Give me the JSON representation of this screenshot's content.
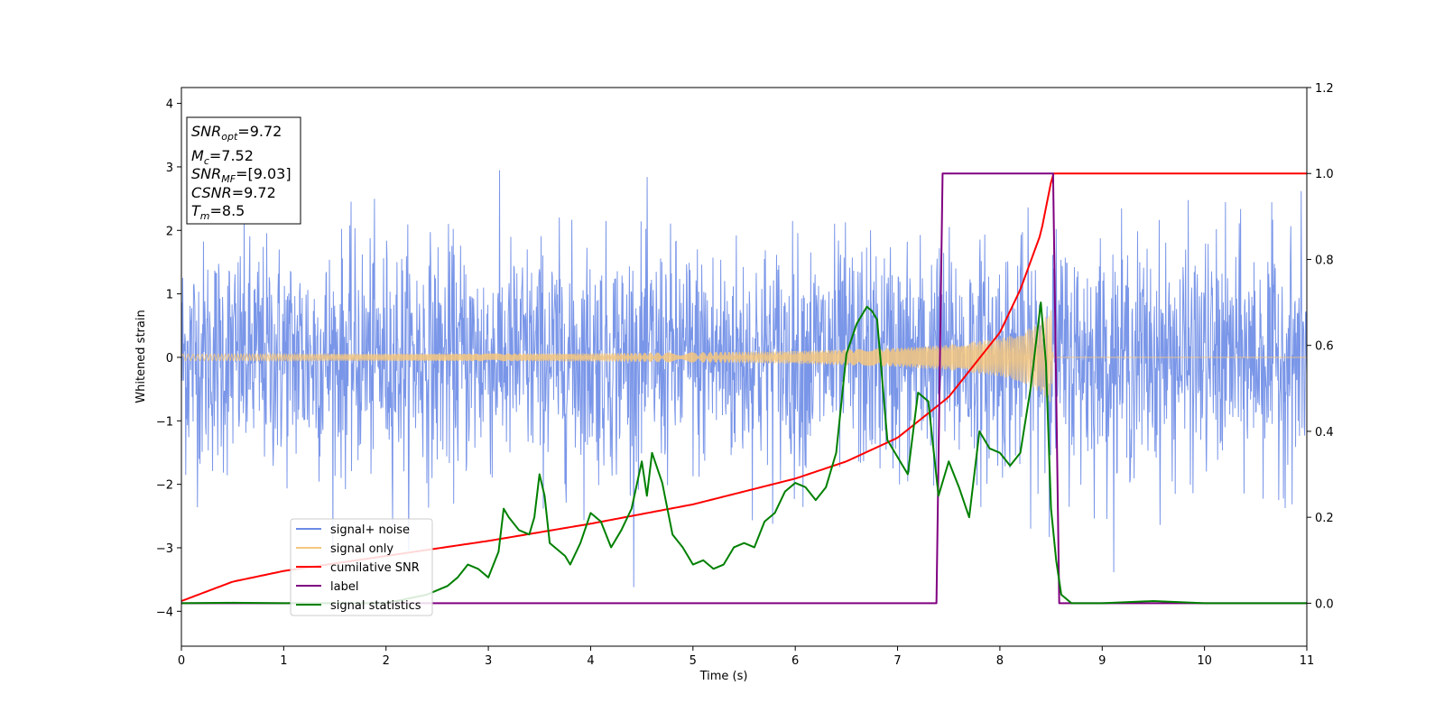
{
  "chart_data": {
    "type": "line",
    "xlabel": "Time (s)",
    "ylabel": "Whitened strain",
    "xlim": [
      0,
      11
    ],
    "ylim": [
      -4.55,
      4.25
    ],
    "y2lim": [
      -0.1,
      1.2
    ],
    "xticks": [
      0,
      1,
      2,
      3,
      4,
      5,
      6,
      7,
      8,
      9,
      10,
      11
    ],
    "yticks": [
      -4,
      -3,
      -2,
      -1,
      0,
      1,
      2,
      3,
      4
    ],
    "y2ticks": [
      "0.0",
      "0.2",
      "0.4",
      "0.6",
      "0.8",
      "1.0",
      "1.2"
    ],
    "legend_placement": "lower-left",
    "grid": false,
    "annotation": {
      "snr_opt": {
        "symbol": "SNR",
        "sub": "opt",
        "value": "=9.72"
      },
      "mc": {
        "symbol": "M",
        "sub": "c",
        "value": "=7.52"
      },
      "snr_mf": {
        "symbol": "SNR",
        "sub": "MF",
        "value": "=[9.03]"
      },
      "csnr": {
        "symbol": "CSNR",
        "value": "=9.72"
      },
      "tm": {
        "symbol": "T",
        "sub": "m",
        "value": "=8.5"
      }
    },
    "series": [
      {
        "name": "signal+ noise",
        "color": "#6b8be6",
        "axis": "left",
        "noise_std": 0.9,
        "noise_max": 3.85,
        "noise_min": -4.15
      },
      {
        "name": "signal only",
        "color": "#f5c77e",
        "axis": "left",
        "envelope_t": [
          0,
          2,
          4,
          5,
          6,
          7,
          7.5,
          8,
          8.2,
          8.4,
          8.5,
          8.52,
          11
        ],
        "envelope_a": [
          0.05,
          0.055,
          0.065,
          0.08,
          0.1,
          0.15,
          0.2,
          0.3,
          0.38,
          0.55,
          0.75,
          0,
          0
        ]
      },
      {
        "name": "cumilative SNR",
        "color": "#ff0000",
        "axis": "right",
        "t": [
          0,
          0.5,
          1,
          2,
          3,
          4,
          5,
          6,
          6.5,
          7,
          7.5,
          8,
          8.2,
          8.4,
          8.5,
          8.52,
          11
        ],
        "y": [
          0.005,
          0.05,
          0.075,
          0.11,
          0.145,
          0.185,
          0.23,
          0.29,
          0.33,
          0.385,
          0.48,
          0.63,
          0.73,
          0.86,
          0.98,
          1.0,
          1.0
        ]
      },
      {
        "name": "label",
        "color": "#800080",
        "axis": "right",
        "t": [
          0,
          7.38,
          7.44,
          8.52,
          8.58,
          11
        ],
        "y": [
          0,
          0,
          1,
          1,
          0,
          0
        ]
      },
      {
        "name": "signal statistics",
        "color": "#008000",
        "axis": "right",
        "t": [
          0,
          0.5,
          1,
          1.5,
          2,
          2.2,
          2.4,
          2.5,
          2.6,
          2.7,
          2.8,
          2.9,
          3.0,
          3.1,
          3.15,
          3.2,
          3.3,
          3.4,
          3.45,
          3.5,
          3.55,
          3.6,
          3.7,
          3.75,
          3.8,
          3.9,
          4.0,
          4.1,
          4.2,
          4.3,
          4.4,
          4.5,
          4.55,
          4.6,
          4.7,
          4.8,
          4.9,
          5.0,
          5.1,
          5.2,
          5.3,
          5.4,
          5.5,
          5.6,
          5.7,
          5.8,
          5.9,
          6.0,
          6.1,
          6.2,
          6.3,
          6.4,
          6.5,
          6.6,
          6.7,
          6.75,
          6.8,
          6.9,
          7.0,
          7.1,
          7.2,
          7.3,
          7.4,
          7.5,
          7.6,
          7.7,
          7.8,
          7.9,
          8.0,
          8.1,
          8.2,
          8.3,
          8.4,
          8.45,
          8.5,
          8.55,
          8.6,
          8.7,
          8.8,
          9.0,
          9.5,
          10,
          11
        ],
        "y": [
          0,
          0.001,
          0.0,
          0.0,
          0.0,
          0.01,
          0.02,
          0.03,
          0.04,
          0.06,
          0.09,
          0.08,
          0.06,
          0.12,
          0.22,
          0.2,
          0.17,
          0.16,
          0.2,
          0.3,
          0.25,
          0.14,
          0.12,
          0.11,
          0.09,
          0.14,
          0.21,
          0.19,
          0.13,
          0.17,
          0.22,
          0.33,
          0.25,
          0.35,
          0.28,
          0.16,
          0.13,
          0.09,
          0.1,
          0.08,
          0.09,
          0.13,
          0.14,
          0.13,
          0.19,
          0.21,
          0.26,
          0.28,
          0.27,
          0.24,
          0.27,
          0.35,
          0.58,
          0.65,
          0.69,
          0.68,
          0.66,
          0.38,
          0.34,
          0.3,
          0.49,
          0.47,
          0.25,
          0.33,
          0.27,
          0.2,
          0.4,
          0.36,
          0.35,
          0.32,
          0.35,
          0.5,
          0.7,
          0.56,
          0.22,
          0.1,
          0.02,
          0.0,
          0.0,
          0.0,
          0.005,
          0.0,
          0.0
        ]
      }
    ]
  }
}
